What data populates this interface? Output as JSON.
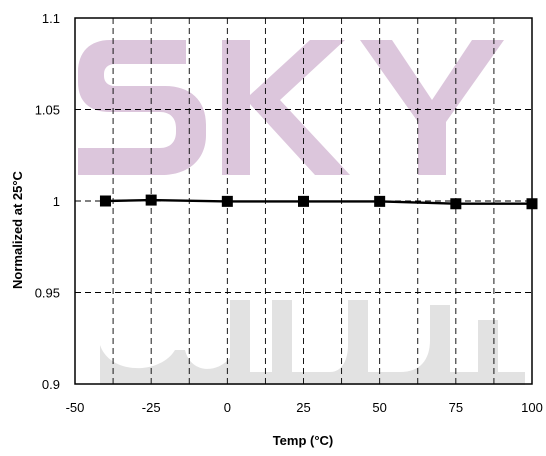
{
  "chart_data": {
    "type": "line",
    "title": "",
    "xlabel": "Temp (°C)",
    "ylabel": "Normalized at 25°C",
    "xlim": [
      -50,
      100
    ],
    "ylim": [
      0.9,
      1.1
    ],
    "x_ticks": [
      -50,
      -25,
      0,
      25,
      50,
      75,
      100
    ],
    "x_tick_labels": [
      "-50",
      "-25",
      "0",
      "25",
      "50",
      "75",
      "100"
    ],
    "y_ticks": [
      0.9,
      0.95,
      1.0,
      1.05,
      1.1
    ],
    "y_tick_labels": [
      "0.9",
      "0.95",
      "1",
      "1.05",
      "1.1"
    ],
    "grid": true,
    "series": [
      {
        "x": [
          -40,
          -25,
          0,
          25,
          50,
          75,
          100
        ],
        "y": [
          1.0,
          1.0005,
          0.9998,
          0.9998,
          0.9998,
          0.9985,
          0.9985
        ],
        "color": "#000000",
        "marker": "square"
      }
    ]
  },
  "watermark": {
    "letters": [
      "S",
      "K",
      "Y"
    ],
    "color": "#dcc6dc"
  }
}
